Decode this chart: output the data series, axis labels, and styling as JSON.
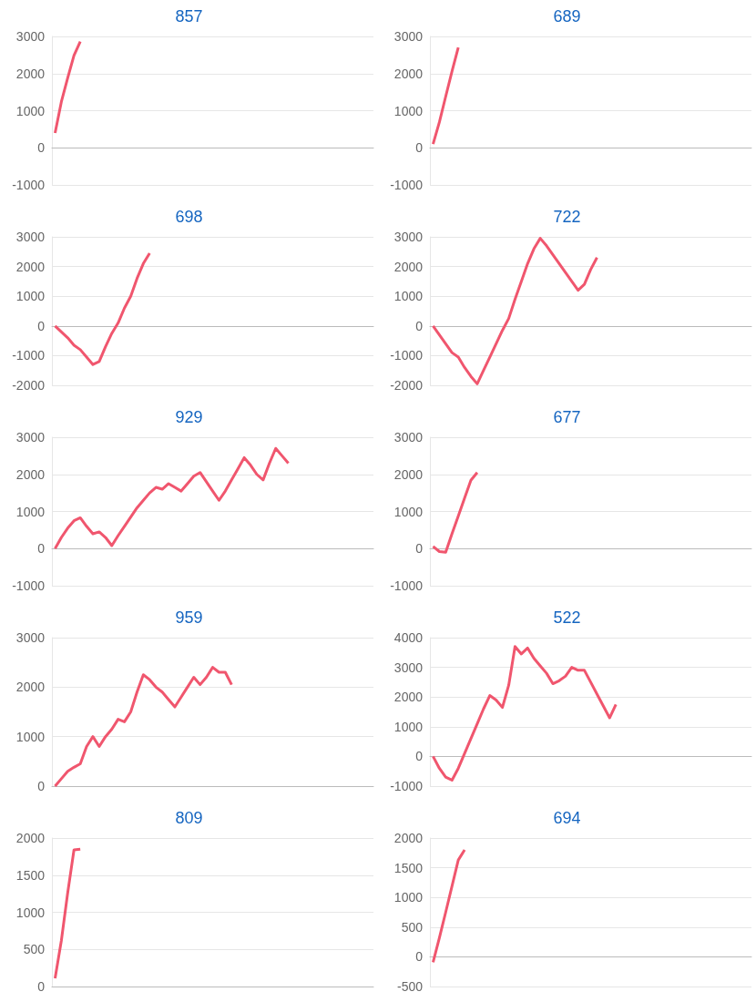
{
  "chart_data": [
    {
      "type": "line",
      "title": "857",
      "color": "#f0566e",
      "grid": "y",
      "tick_labels": "y",
      "marker": "none",
      "ylim": [
        -1000,
        3000
      ],
      "yticks": [
        -1000,
        0,
        1000,
        2000,
        3000
      ],
      "categories": [
        null,
        null,
        null,
        null,
        null,
        null,
        null,
        null,
        null,
        null,
        null,
        null,
        null,
        null,
        null,
        null,
        null,
        null,
        null,
        null,
        null,
        null,
        null,
        null,
        null,
        null,
        null,
        null,
        null,
        null,
        null,
        null,
        null,
        null,
        null,
        null,
        null,
        null,
        null,
        null,
        null,
        null,
        null,
        null,
        null,
        null,
        null,
        null,
        null,
        null,
        null
      ],
      "values": [
        400,
        1240,
        1880,
        2490,
        2860,
        null,
        null,
        null,
        null,
        null,
        null,
        null,
        null,
        null,
        null,
        null,
        null,
        null,
        null,
        null,
        null,
        null,
        null,
        null,
        null,
        null,
        null,
        null,
        null,
        null,
        null,
        null,
        null,
        null,
        null,
        null,
        null,
        null,
        null,
        null,
        null,
        null,
        null,
        null,
        null,
        null,
        null,
        null,
        null,
        null,
        null
      ]
    },
    {
      "type": "line",
      "title": "689",
      "color": "#f0566e",
      "grid": "y",
      "tick_labels": "y",
      "marker": "none",
      "ylim": [
        -1000,
        3000
      ],
      "yticks": [
        -1000,
        0,
        1000,
        2000,
        3000
      ],
      "categories": [
        null,
        null,
        null,
        null,
        null,
        null,
        null,
        null,
        null,
        null,
        null,
        null,
        null,
        null,
        null,
        null,
        null,
        null,
        null,
        null,
        null,
        null,
        null,
        null,
        null,
        null,
        null,
        null,
        null,
        null,
        null,
        null,
        null,
        null,
        null,
        null,
        null,
        null,
        null,
        null,
        null,
        null,
        null,
        null,
        null,
        null,
        null,
        null,
        null,
        null,
        null
      ],
      "values": [
        100,
        690,
        1380,
        2060,
        2700,
        null,
        null,
        null,
        null,
        null,
        null,
        null,
        null,
        null,
        null,
        null,
        null,
        null,
        null,
        null,
        null,
        null,
        null,
        null,
        null,
        null,
        null,
        null,
        null,
        null,
        null,
        null,
        null,
        null,
        null,
        null,
        null,
        null,
        null,
        null,
        null,
        null,
        null,
        null,
        null,
        null,
        null,
        null,
        null,
        null,
        null
      ]
    },
    {
      "type": "line",
      "title": "698",
      "color": "#f0566e",
      "grid": "y",
      "tick_labels": "y",
      "marker": "none",
      "ylim": [
        -2000,
        3000
      ],
      "yticks": [
        -2000,
        -1000,
        0,
        1000,
        2000,
        3000
      ],
      "categories": [
        null,
        null,
        null,
        null,
        null,
        null,
        null,
        null,
        null,
        null,
        null,
        null,
        null,
        null,
        null,
        null,
        null,
        null,
        null,
        null,
        null,
        null,
        null,
        null,
        null,
        null,
        null,
        null,
        null,
        null,
        null,
        null,
        null,
        null,
        null,
        null,
        null,
        null,
        null,
        null,
        null,
        null,
        null,
        null,
        null,
        null,
        null,
        null,
        null,
        null,
        null
      ],
      "values": [
        0,
        -200,
        -400,
        -650,
        -800,
        -1050,
        -1300,
        -1200,
        -700,
        -250,
        100,
        600,
        1000,
        1600,
        2100,
        2450,
        null,
        null,
        null,
        null,
        null,
        null,
        null,
        null,
        null,
        null,
        null,
        null,
        null,
        null,
        null,
        null,
        null,
        null,
        null,
        null,
        null,
        null,
        null,
        null,
        null,
        null,
        null,
        null,
        null,
        null,
        null,
        null,
        null,
        null,
        null
      ]
    },
    {
      "type": "line",
      "title": "722",
      "color": "#f0566e",
      "grid": "y",
      "tick_labels": "y",
      "marker": "none",
      "ylim": [
        -2000,
        3000
      ],
      "yticks": [
        -2000,
        -1000,
        0,
        1000,
        2000,
        3000
      ],
      "categories": [
        null,
        null,
        null,
        null,
        null,
        null,
        null,
        null,
        null,
        null,
        null,
        null,
        null,
        null,
        null,
        null,
        null,
        null,
        null,
        null,
        null,
        null,
        null,
        null,
        null,
        null,
        null,
        null,
        null,
        null,
        null,
        null,
        null,
        null,
        null,
        null,
        null,
        null,
        null,
        null,
        null,
        null,
        null,
        null,
        null,
        null,
        null,
        null,
        null,
        null,
        null
      ],
      "values": [
        0,
        -300,
        -600,
        -900,
        -1050,
        -1400,
        -1700,
        -1950,
        -1500,
        -1050,
        -600,
        -150,
        250,
        900,
        1500,
        2100,
        2600,
        2950,
        2700,
        2400,
        2100,
        1800,
        1500,
        1200,
        1400,
        1900,
        2300,
        null,
        null,
        null,
        null,
        null,
        null,
        null,
        null,
        null,
        null,
        null,
        null,
        null,
        null,
        null,
        null,
        null,
        null,
        null,
        null,
        null,
        null,
        null,
        null
      ]
    },
    {
      "type": "line",
      "title": "929",
      "color": "#f0566e",
      "grid": "y",
      "tick_labels": "y",
      "marker": "none",
      "ylim": [
        -1000,
        3000
      ],
      "yticks": [
        -1000,
        0,
        1000,
        2000,
        3000
      ],
      "categories": [
        null,
        null,
        null,
        null,
        null,
        null,
        null,
        null,
        null,
        null,
        null,
        null,
        null,
        null,
        null,
        null,
        null,
        null,
        null,
        null,
        null,
        null,
        null,
        null,
        null,
        null,
        null,
        null,
        null,
        null,
        null,
        null,
        null,
        null,
        null,
        null,
        null,
        null,
        null,
        null,
        null,
        null,
        null,
        null,
        null,
        null,
        null,
        null,
        null,
        null,
        null
      ],
      "values": [
        0,
        300,
        550,
        750,
        830,
        600,
        400,
        450,
        300,
        80,
        350,
        600,
        850,
        1100,
        1300,
        1500,
        1650,
        1600,
        1750,
        1650,
        1550,
        1750,
        1950,
        2050,
        1800,
        1550,
        1300,
        1550,
        1850,
        2150,
        2450,
        2250,
        2000,
        1850,
        2300,
        2700,
        2500,
        2300,
        null,
        null,
        null,
        null,
        null,
        null,
        null,
        null,
        null,
        null,
        null,
        null,
        null
      ]
    },
    {
      "type": "line",
      "title": "677",
      "color": "#f0566e",
      "grid": "y",
      "tick_labels": "y",
      "marker": "none",
      "ylim": [
        -1000,
        3000
      ],
      "yticks": [
        -1000,
        0,
        1000,
        2000,
        3000
      ],
      "categories": [
        null,
        null,
        null,
        null,
        null,
        null,
        null,
        null,
        null,
        null,
        null,
        null,
        null,
        null,
        null,
        null,
        null,
        null,
        null,
        null,
        null,
        null,
        null,
        null,
        null,
        null,
        null,
        null,
        null,
        null,
        null,
        null,
        null,
        null,
        null,
        null,
        null,
        null,
        null,
        null,
        null,
        null,
        null,
        null,
        null,
        null,
        null,
        null,
        null,
        null,
        null
      ],
      "values": [
        60,
        -80,
        -100,
        400,
        880,
        1360,
        1840,
        2050,
        null,
        null,
        null,
        null,
        null,
        null,
        null,
        null,
        null,
        null,
        null,
        null,
        null,
        null,
        null,
        null,
        null,
        null,
        null,
        null,
        null,
        null,
        null,
        null,
        null,
        null,
        null,
        null,
        null,
        null,
        null,
        null,
        null,
        null,
        null,
        null,
        null,
        null,
        null,
        null,
        null,
        null,
        null
      ]
    },
    {
      "type": "line",
      "title": "959",
      "color": "#f0566e",
      "grid": "y",
      "tick_labels": "y",
      "marker": "none",
      "ylim": [
        0,
        3000
      ],
      "yticks": [
        0,
        1000,
        2000,
        3000
      ],
      "categories": [
        null,
        null,
        null,
        null,
        null,
        null,
        null,
        null,
        null,
        null,
        null,
        null,
        null,
        null,
        null,
        null,
        null,
        null,
        null,
        null,
        null,
        null,
        null,
        null,
        null,
        null,
        null,
        null,
        null,
        null,
        null,
        null,
        null,
        null,
        null,
        null,
        null,
        null,
        null,
        null,
        null,
        null,
        null,
        null,
        null,
        null,
        null,
        null,
        null,
        null,
        null
      ],
      "values": [
        0,
        150,
        300,
        380,
        450,
        800,
        1000,
        800,
        1000,
        1150,
        1350,
        1300,
        1500,
        1900,
        2250,
        2150,
        2000,
        1900,
        1750,
        1600,
        1800,
        2000,
        2200,
        2050,
        2200,
        2400,
        2300,
        2300,
        2050,
        null,
        null,
        null,
        null,
        null,
        null,
        null,
        null,
        null,
        null,
        null,
        null,
        null,
        null,
        null,
        null,
        null,
        null,
        null,
        null,
        null,
        null
      ]
    },
    {
      "type": "line",
      "title": "522",
      "color": "#f0566e",
      "grid": "y",
      "tick_labels": "y",
      "marker": "none",
      "ylim": [
        -1000,
        4000
      ],
      "yticks": [
        -1000,
        0,
        1000,
        2000,
        3000,
        4000
      ],
      "categories": [
        null,
        null,
        null,
        null,
        null,
        null,
        null,
        null,
        null,
        null,
        null,
        null,
        null,
        null,
        null,
        null,
        null,
        null,
        null,
        null,
        null,
        null,
        null,
        null,
        null,
        null,
        null,
        null,
        null,
        null,
        null,
        null,
        null,
        null,
        null,
        null,
        null,
        null,
        null,
        null,
        null,
        null,
        null,
        null,
        null,
        null,
        null,
        null,
        null,
        null,
        null
      ],
      "values": [
        0,
        -400,
        -700,
        -800,
        -400,
        100,
        600,
        1100,
        1600,
        2050,
        1900,
        1650,
        2400,
        3700,
        3450,
        3650,
        3300,
        3050,
        2800,
        2450,
        2550,
        2700,
        3000,
        2900,
        2900,
        2500,
        2100,
        1700,
        1300,
        1750,
        null,
        null,
        null,
        null,
        null,
        null,
        null,
        null,
        null,
        null,
        null,
        null,
        null,
        null,
        null,
        null,
        null,
        null,
        null,
        null,
        null
      ]
    },
    {
      "type": "line",
      "title": "809",
      "color": "#f0566e",
      "grid": "y",
      "tick_labels": "y",
      "marker": "none",
      "ylim": [
        0,
        2000
      ],
      "yticks": [
        0,
        500,
        1000,
        1500,
        2000
      ],
      "categories": [
        null,
        null,
        null,
        null,
        null,
        null,
        null,
        null,
        null,
        null,
        null,
        null,
        null,
        null,
        null,
        null,
        null,
        null,
        null,
        null,
        null,
        null,
        null,
        null,
        null,
        null,
        null,
        null,
        null,
        null,
        null,
        null,
        null,
        null,
        null,
        null,
        null,
        null,
        null,
        null,
        null,
        null,
        null,
        null,
        null,
        null,
        null,
        null,
        null,
        null,
        null
      ],
      "values": [
        110,
        620,
        1260,
        1840,
        1850,
        null,
        null,
        null,
        null,
        null,
        null,
        null,
        null,
        null,
        null,
        null,
        null,
        null,
        null,
        null,
        null,
        null,
        null,
        null,
        null,
        null,
        null,
        null,
        null,
        null,
        null,
        null,
        null,
        null,
        null,
        null,
        null,
        null,
        null,
        null,
        null,
        null,
        null,
        null,
        null,
        null,
        null,
        null,
        null,
        null,
        null
      ]
    },
    {
      "type": "line",
      "title": "694",
      "color": "#f0566e",
      "grid": "y",
      "tick_labels": "y",
      "marker": "none",
      "ylim": [
        -500,
        2000
      ],
      "yticks": [
        -500,
        0,
        500,
        1000,
        1500,
        2000
      ],
      "categories": [
        null,
        null,
        null,
        null,
        null,
        null,
        null,
        null,
        null,
        null,
        null,
        null,
        null,
        null,
        null,
        null,
        null,
        null,
        null,
        null,
        null,
        null,
        null,
        null,
        null,
        null,
        null,
        null,
        null,
        null,
        null,
        null,
        null,
        null,
        null,
        null,
        null,
        null,
        null,
        null,
        null,
        null,
        null,
        null,
        null,
        null,
        null,
        null,
        null,
        null,
        null
      ],
      "values": [
        -90,
        320,
        750,
        1190,
        1630,
        1800,
        null,
        null,
        null,
        null,
        null,
        null,
        null,
        null,
        null,
        null,
        null,
        null,
        null,
        null,
        null,
        null,
        null,
        null,
        null,
        null,
        null,
        null,
        null,
        null,
        null,
        null,
        null,
        null,
        null,
        null,
        null,
        null,
        null,
        null,
        null,
        null,
        null,
        null,
        null,
        null,
        null,
        null,
        null,
        null,
        null
      ]
    }
  ]
}
